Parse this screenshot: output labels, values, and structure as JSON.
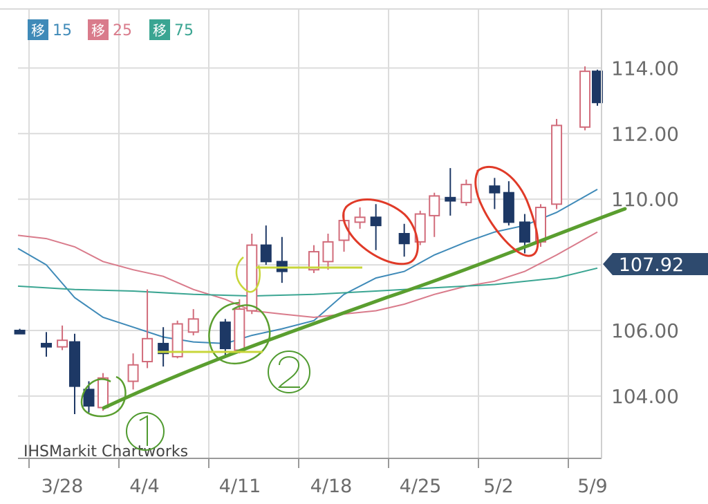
{
  "chart_data": {
    "type": "candlestick",
    "title": "",
    "credit": "IHSMarkit Chartworks",
    "legend": [
      {
        "box_label": "移",
        "value_label": "15",
        "color": "#3f8ab8"
      },
      {
        "box_label": "移",
        "value_label": "25",
        "color": "#d97b8b"
      },
      {
        "box_label": "移",
        "value_label": "75",
        "color": "#3aa592"
      }
    ],
    "y_axis": {
      "ticks": [
        "104.00",
        "106.00",
        "110.00",
        "112.00",
        "114.00"
      ],
      "tick_values": [
        104,
        106,
        110,
        112,
        114
      ],
      "range": [
        102.1,
        115.8
      ]
    },
    "x_axis": {
      "ticks": [
        "3/28",
        "4/4",
        "4/11",
        "4/18",
        "4/25",
        "5/2",
        "5/9"
      ],
      "range": [
        -0.1,
        32.6
      ]
    },
    "current_price": {
      "label": "107.92",
      "value": 107.92
    },
    "colors": {
      "up": "#d16b7a",
      "down": "#1d3865",
      "grid": "#dcdcdc",
      "price_tag": "#2e4a6e"
    },
    "candles": [
      {
        "x": 0,
        "o": 106.0,
        "h": 106.05,
        "l": 105.95,
        "c": 105.9
      },
      {
        "x": 1.5,
        "o": 105.6,
        "h": 105.95,
        "l": 105.2,
        "c": 105.5
      },
      {
        "x": 2.4,
        "o": 105.5,
        "h": 106.15,
        "l": 105.4,
        "c": 105.7
      },
      {
        "x": 3.1,
        "o": 105.65,
        "h": 105.9,
        "l": 103.45,
        "c": 104.3
      },
      {
        "x": 3.9,
        "o": 104.2,
        "h": 104.45,
        "l": 103.5,
        "c": 103.7
      },
      {
        "x": 4.7,
        "o": 103.65,
        "h": 104.7,
        "l": 103.55,
        "c": 104.55
      },
      {
        "x": 6.4,
        "o": 104.45,
        "h": 105.3,
        "l": 104.2,
        "c": 104.95
      },
      {
        "x": 7.2,
        "o": 105.05,
        "h": 107.25,
        "l": 104.85,
        "c": 105.75
      },
      {
        "x": 8.1,
        "o": 105.6,
        "h": 106.1,
        "l": 104.9,
        "c": 105.3
      },
      {
        "x": 8.9,
        "o": 105.2,
        "h": 106.3,
        "l": 105.15,
        "c": 106.2
      },
      {
        "x": 9.8,
        "o": 105.95,
        "h": 106.65,
        "l": 105.85,
        "c": 106.35
      },
      {
        "x": 11.6,
        "o": 106.25,
        "h": 106.35,
        "l": 105.2,
        "c": 105.45
      },
      {
        "x": 12.4,
        "o": 105.4,
        "h": 106.95,
        "l": 105.3,
        "c": 106.65
      },
      {
        "x": 13.1,
        "o": 106.6,
        "h": 108.95,
        "l": 106.5,
        "c": 108.6
      },
      {
        "x": 13.9,
        "o": 108.6,
        "h": 109.2,
        "l": 108.0,
        "c": 108.1
      },
      {
        "x": 14.8,
        "o": 108.1,
        "h": 108.85,
        "l": 107.45,
        "c": 107.8
      },
      {
        "x": 16.6,
        "o": 107.85,
        "h": 108.6,
        "l": 107.75,
        "c": 108.4
      },
      {
        "x": 17.4,
        "o": 108.1,
        "h": 108.95,
        "l": 107.85,
        "c": 108.7
      },
      {
        "x": 18.3,
        "o": 108.75,
        "h": 109.6,
        "l": 108.4,
        "c": 109.35
      },
      {
        "x": 19.2,
        "o": 109.3,
        "h": 109.75,
        "l": 109.1,
        "c": 109.45
      },
      {
        "x": 20.1,
        "o": 109.45,
        "h": 109.85,
        "l": 108.45,
        "c": 109.2
      },
      {
        "x": 21.7,
        "o": 108.95,
        "h": 109.25,
        "l": 108.25,
        "c": 108.65
      },
      {
        "x": 22.6,
        "o": 108.7,
        "h": 109.65,
        "l": 108.6,
        "c": 109.55
      },
      {
        "x": 23.4,
        "o": 109.5,
        "h": 110.2,
        "l": 108.85,
        "c": 110.1
      },
      {
        "x": 24.3,
        "o": 110.05,
        "h": 110.95,
        "l": 109.5,
        "c": 109.95
      },
      {
        "x": 25.2,
        "o": 109.9,
        "h": 110.6,
        "l": 109.8,
        "c": 110.45
      },
      {
        "x": 26.8,
        "o": 110.4,
        "h": 110.65,
        "l": 109.7,
        "c": 110.2
      },
      {
        "x": 27.6,
        "o": 110.2,
        "h": 110.55,
        "l": 109.2,
        "c": 109.3
      },
      {
        "x": 28.5,
        "o": 109.3,
        "h": 109.55,
        "l": 108.35,
        "c": 108.7
      },
      {
        "x": 29.4,
        "o": 108.7,
        "h": 109.85,
        "l": 108.55,
        "c": 109.75
      },
      {
        "x": 30.3,
        "o": 109.85,
        "h": 112.45,
        "l": 109.7,
        "c": 112.25
      },
      {
        "x": 31.9,
        "o": 112.2,
        "h": 114.05,
        "l": 112.1,
        "c": 113.9
      },
      {
        "x": 32.6,
        "o": 113.9,
        "h": 113.95,
        "l": 112.85,
        "c": 112.95
      }
    ],
    "moving_averages": [
      {
        "color": "#3f8ab8",
        "points": [
          [
            -0.1,
            108.5
          ],
          [
            1.5,
            108.0
          ],
          [
            3.1,
            107.0
          ],
          [
            4.7,
            106.4
          ],
          [
            6.4,
            106.1
          ],
          [
            8.1,
            105.8
          ],
          [
            9.8,
            105.65
          ],
          [
            11.6,
            105.6
          ],
          [
            13.1,
            105.85
          ],
          [
            14.8,
            106.05
          ],
          [
            16.6,
            106.3
          ],
          [
            18.3,
            107.1
          ],
          [
            20.1,
            107.6
          ],
          [
            21.7,
            107.8
          ],
          [
            23.4,
            108.3
          ],
          [
            25.2,
            108.7
          ],
          [
            26.8,
            109.0
          ],
          [
            28.5,
            109.2
          ],
          [
            30.3,
            109.6
          ],
          [
            32.6,
            110.3
          ]
        ]
      },
      {
        "color": "#d97b8b",
        "points": [
          [
            -0.1,
            108.9
          ],
          [
            1.5,
            108.8
          ],
          [
            3.1,
            108.55
          ],
          [
            4.7,
            108.1
          ],
          [
            6.4,
            107.85
          ],
          [
            8.1,
            107.65
          ],
          [
            9.8,
            107.25
          ],
          [
            11.6,
            106.95
          ],
          [
            13.1,
            106.6
          ],
          [
            14.8,
            106.5
          ],
          [
            16.6,
            106.4
          ],
          [
            18.3,
            106.5
          ],
          [
            20.1,
            106.6
          ],
          [
            21.7,
            106.8
          ],
          [
            23.4,
            107.1
          ],
          [
            25.2,
            107.35
          ],
          [
            26.8,
            107.5
          ],
          [
            28.5,
            107.8
          ],
          [
            30.3,
            108.3
          ],
          [
            32.6,
            109.0
          ]
        ]
      },
      {
        "color": "#3aa592",
        "points": [
          [
            -0.1,
            107.35
          ],
          [
            3.1,
            107.25
          ],
          [
            6.4,
            107.2
          ],
          [
            9.8,
            107.1
          ],
          [
            13.1,
            107.05
          ],
          [
            16.6,
            107.1
          ],
          [
            20.1,
            107.2
          ],
          [
            23.4,
            107.3
          ],
          [
            26.8,
            107.4
          ],
          [
            30.3,
            107.6
          ],
          [
            32.6,
            107.9
          ]
        ]
      }
    ]
  }
}
